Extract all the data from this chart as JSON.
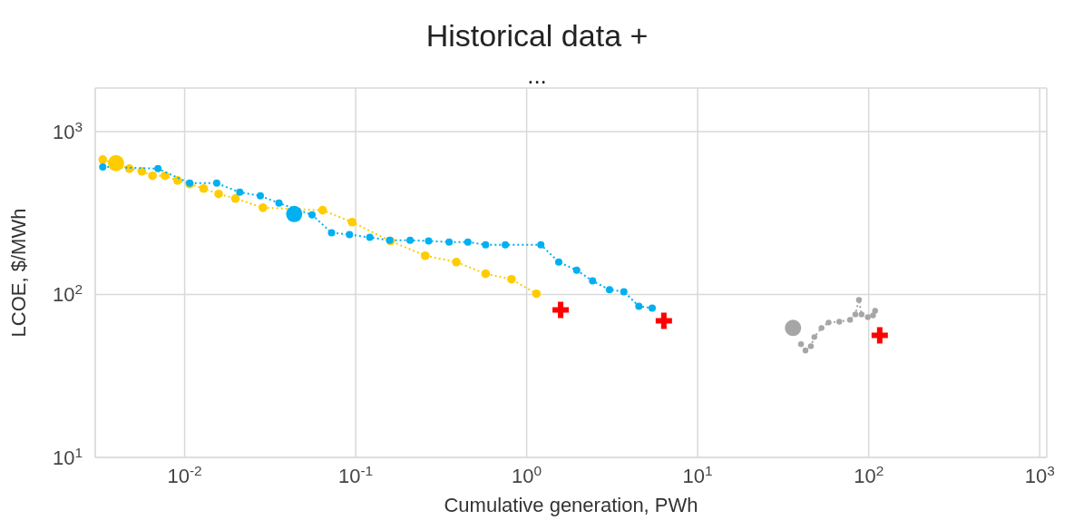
{
  "chart_data": {
    "type": "line",
    "title": "Historical data +",
    "subtitle": "...",
    "xlabel": "Cumulative generation, PWh",
    "ylabel": "LCOE, $/MWh",
    "log": "xy",
    "grid": true,
    "marker": "circle",
    "line_style": "dotted",
    "xlim": [
      0.003,
      1100
    ],
    "xticks": [
      {
        "value": 0.01,
        "label": "10$^{-2}$"
      },
      {
        "value": 0.1,
        "label": "10$^{-1}$"
      },
      {
        "value": 1,
        "label": "10$^{0}$"
      },
      {
        "value": 10,
        "label": "10$^{1}$"
      },
      {
        "value": 100,
        "label": "10$^{2}$"
      },
      {
        "value": 1000,
        "label": "10$^{3}$"
      }
    ],
    "ylim": [
      10,
      1850
    ],
    "yticks": [
      {
        "value": 10,
        "label": "10$^{1}$"
      },
      {
        "value": 100,
        "label": "10$^{2}$"
      },
      {
        "value": 1000,
        "label": "10$^{3}$"
      }
    ],
    "series": [
      {
        "color": "#ffcc00",
        "x": [
          0.00332,
          0.00475,
          0.00562,
          0.00649,
          0.00768,
          0.00908,
          0.0107,
          0.0129,
          0.0158,
          0.0198,
          0.0287,
          0.0641,
          0.0953,
          0.16,
          0.255,
          0.388,
          0.575,
          0.815,
          1.14
        ],
        "values": [
          673,
          592,
          570,
          535,
          535,
          501,
          476,
          447,
          414,
          388,
          341,
          329,
          278,
          213,
          173,
          158,
          134,
          124,
          101
        ]
      },
      {
        "color": "#00b0f0",
        "x": [
          0.00332,
          0.00698,
          0.0107,
          0.0154,
          0.021,
          0.0277,
          0.0356,
          0.0556,
          0.0723,
          0.092,
          0.121,
          0.158,
          0.208,
          0.267,
          0.352,
          0.453,
          0.575,
          0.75,
          1.21,
          1.54,
          1.96,
          2.43,
          3.05,
          3.7,
          4.53,
          5.42
        ],
        "values": [
          607,
          592,
          482,
          482,
          424,
          403,
          364,
          308,
          239,
          233,
          224,
          215,
          215,
          213,
          210,
          210,
          202,
          202,
          202,
          158,
          141,
          121,
          107,
          104,
          84.7,
          82.5
        ]
      },
      {
        "color": "#a6a6a6",
        "x": [
          40.2,
          42.7,
          45.9,
          48.1,
          53,
          58.3,
          67.3,
          77.8,
          83.5,
          87.7,
          90.8,
          98.8,
          106,
          109
        ],
        "values": [
          49.5,
          45.3,
          48.2,
          54.8,
          62.3,
          67.3,
          68.1,
          69.9,
          75.5,
          92.6,
          75.5,
          72.6,
          74.5,
          79.4
        ]
      },
      {
        "type": "scatter",
        "marker": "circle",
        "colors": [
          "#ffcc00",
          "#00b0f0",
          "#a6a6a6"
        ],
        "x": [
          0.00397,
          0.0437,
          36.1
        ],
        "values": [
          640,
          312,
          62.3
        ]
      },
      {
        "type": "scatter",
        "marker": "cross",
        "color": "#ff0000",
        "x": [
          1.58,
          6.34,
          116
        ],
        "values": [
          80.5,
          69,
          56.2
        ]
      }
    ]
  }
}
